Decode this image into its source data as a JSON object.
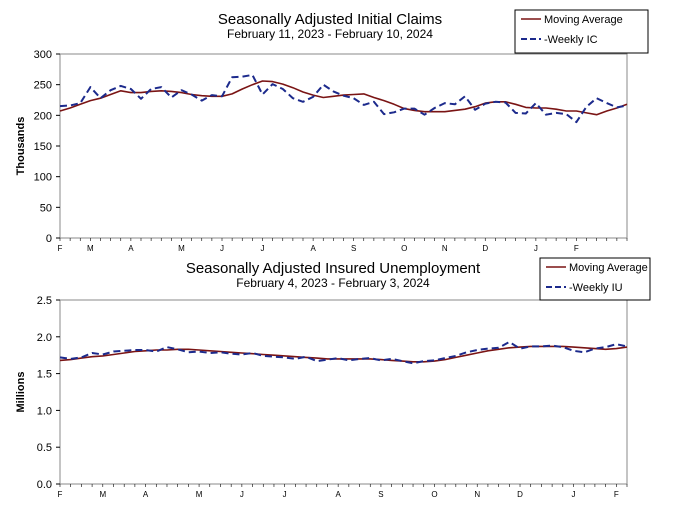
{
  "chart_data": [
    {
      "type": "line",
      "title": "Seasonally Adjusted Initial Claims",
      "subtitle": "February 11, 2023 - February 10, 2024",
      "ylabel": "Thousands",
      "ylim": [
        0,
        300
      ],
      "yticks": [
        0,
        50,
        100,
        150,
        200,
        250,
        300
      ],
      "grid": false,
      "legend_position": "top-right",
      "month_labels": [
        "F",
        "M",
        "A",
        "M",
        "J",
        "J",
        "A",
        "S",
        "O",
        "N",
        "D",
        "J",
        "F"
      ],
      "month_week_index": [
        0,
        3,
        7,
        12,
        16,
        20,
        25,
        29,
        34,
        38,
        42,
        47,
        51
      ],
      "series": [
        {
          "name": "Moving Average",
          "color": "#7a1414",
          "style": "solid",
          "values": [
            207,
            212,
            218,
            224,
            228,
            234,
            240,
            237,
            237,
            239,
            240,
            239,
            237,
            234,
            232,
            231,
            231,
            235,
            243,
            250,
            256,
            255,
            251,
            245,
            238,
            233,
            229,
            231,
            233,
            234,
            235,
            229,
            224,
            218,
            211,
            208,
            206,
            206,
            206,
            208,
            210,
            214,
            220,
            222,
            222,
            218,
            213,
            212,
            212,
            210,
            207,
            207,
            204,
            201,
            207,
            212,
            218
          ]
        },
        {
          "name": "-Weekly IC",
          "color": "#1c2a8c",
          "style": "dashed",
          "values": [
            215,
            216,
            220,
            246,
            228,
            241,
            248,
            243,
            227,
            243,
            246,
            229,
            241,
            234,
            224,
            233,
            231,
            262,
            263,
            266,
            234,
            251,
            243,
            228,
            222,
            230,
            250,
            239,
            232,
            228,
            217,
            222,
            202,
            205,
            211,
            211,
            201,
            212,
            220,
            218,
            231,
            209,
            219,
            222,
            221,
            204,
            203,
            220,
            201,
            204,
            202,
            189,
            214,
            228,
            220,
            213,
            216
          ]
        }
      ]
    },
    {
      "type": "line",
      "title": "Seasonally Adjusted Insured Unemployment",
      "subtitle": "February 4, 2023 - February 3, 2024",
      "ylabel": "Millions",
      "ylim": [
        0,
        2.5
      ],
      "yticks": [
        "0.0",
        "0.5",
        "1.0",
        "1.5",
        "2.0",
        "2.5"
      ],
      "grid": false,
      "legend_position": "top-right",
      "month_labels": [
        "F",
        "M",
        "A",
        "M",
        "J",
        "J",
        "A",
        "S",
        "O",
        "N",
        "D",
        "J",
        "F"
      ],
      "month_week_index": [
        0,
        4,
        8,
        13,
        17,
        21,
        26,
        30,
        35,
        39,
        43,
        48,
        52
      ],
      "series": [
        {
          "name": "Moving Average",
          "color": "#7a1414",
          "style": "solid",
          "values": [
            1.68,
            1.69,
            1.71,
            1.73,
            1.74,
            1.76,
            1.78,
            1.8,
            1.81,
            1.82,
            1.82,
            1.83,
            1.83,
            1.82,
            1.81,
            1.8,
            1.79,
            1.78,
            1.77,
            1.76,
            1.75,
            1.74,
            1.73,
            1.72,
            1.71,
            1.7,
            1.7,
            1.7,
            1.7,
            1.7,
            1.69,
            1.68,
            1.67,
            1.66,
            1.66,
            1.67,
            1.69,
            1.72,
            1.75,
            1.78,
            1.81,
            1.83,
            1.85,
            1.86,
            1.87,
            1.87,
            1.87,
            1.87,
            1.86,
            1.85,
            1.84,
            1.83,
            1.84,
            1.86
          ]
        },
        {
          "name": "-Weekly IU",
          "color": "#1c2a8c",
          "style": "dashed",
          "values": [
            1.72,
            1.7,
            1.72,
            1.78,
            1.76,
            1.8,
            1.81,
            1.82,
            1.82,
            1.8,
            1.86,
            1.83,
            1.79,
            1.8,
            1.78,
            1.79,
            1.77,
            1.76,
            1.78,
            1.74,
            1.73,
            1.72,
            1.7,
            1.73,
            1.67,
            1.69,
            1.71,
            1.68,
            1.7,
            1.71,
            1.68,
            1.7,
            1.67,
            1.64,
            1.67,
            1.68,
            1.71,
            1.74,
            1.79,
            1.82,
            1.84,
            1.85,
            1.93,
            1.84,
            1.87,
            1.87,
            1.88,
            1.86,
            1.81,
            1.79,
            1.84,
            1.86,
            1.9,
            1.87
          ]
        }
      ]
    }
  ]
}
